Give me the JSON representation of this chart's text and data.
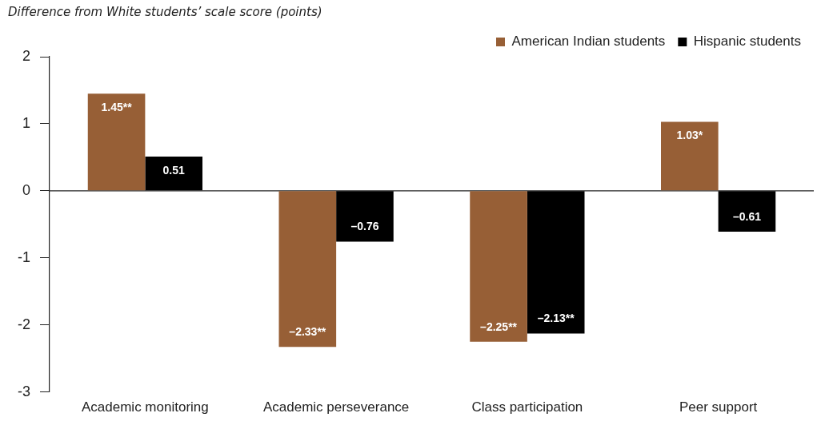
{
  "chart_data": {
    "type": "bar",
    "ylabel": "Difference from White students’ scale score (points)",
    "categories": [
      "Academic monitoring",
      "Academic perseverance",
      "Class participation",
      "Peer support"
    ],
    "series": [
      {
        "name": "American Indian students",
        "color": "#975f36",
        "values": [
          1.45,
          -2.33,
          -2.25,
          1.03
        ],
        "value_labels": [
          "1.45**",
          "–2.33**",
          "–2.25**",
          "1.03*"
        ]
      },
      {
        "name": "Hispanic students",
        "color": "#000000",
        "values": [
          0.51,
          -0.76,
          -2.13,
          -0.61
        ],
        "value_labels": [
          "0.51",
          "–0.76",
          "–2.13**",
          "–0.61"
        ]
      }
    ],
    "ylim": [
      -3,
      2
    ],
    "yticks": [
      2,
      1,
      0,
      -1,
      -2,
      -3
    ],
    "ref_lines": [
      {
        "axis": "y",
        "value": 0,
        "color": "#222222"
      }
    ],
    "grid": false,
    "legend": "top right"
  }
}
